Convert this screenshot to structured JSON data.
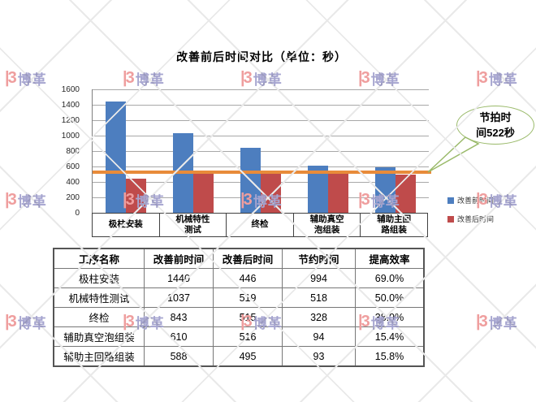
{
  "title": "改善前后时间对比（单位：秒）",
  "watermark": {
    "icon": "|3",
    "text": "博革"
  },
  "chart_data": {
    "type": "bar",
    "title": "改善前后时间对比（单位：秒）",
    "categories": [
      "极柱安装",
      "机械特性测试",
      "终检",
      "辅助真空泡组装",
      "辅助主回路组装"
    ],
    "categories_display": [
      [
        "极柱安装"
      ],
      [
        "机械特性",
        "测试"
      ],
      [
        "终检"
      ],
      [
        "辅助真空",
        "泡组装"
      ],
      [
        "辅助主回",
        "路组装"
      ]
    ],
    "series": [
      {
        "name": "改善前时间",
        "color": "#4d7ebf",
        "values": [
          1440,
          1037,
          843,
          610,
          588
        ]
      },
      {
        "name": "改善后时间",
        "color": "#bf4b4b",
        "values": [
          446,
          519,
          515,
          516,
          495
        ]
      }
    ],
    "takt_line": {
      "label": "节拍时间522秒",
      "value": 522,
      "color": "#e88b3a"
    },
    "ylim": [
      0,
      1600
    ],
    "ytick_step": 200,
    "grid": true,
    "legend_position": "right"
  },
  "callout": {
    "line1": "节拍时",
    "line2": "间522秒"
  },
  "table": {
    "headers": [
      "工序名称",
      "改善前时间",
      "改善后时间",
      "节约时间",
      "提高效率"
    ],
    "rows": [
      [
        "极柱安装",
        "1440",
        "446",
        "994",
        "69.0%"
      ],
      [
        "机械特性测试",
        "1037",
        "519",
        "518",
        "50.0%"
      ],
      [
        "终检",
        "843",
        "515",
        "328",
        "38.9%"
      ],
      [
        "辅助真空泡组装",
        "610",
        "516",
        "94",
        "15.4%"
      ],
      [
        "辅助主回路组装",
        "588",
        "495",
        "93",
        "15.8%"
      ]
    ]
  }
}
